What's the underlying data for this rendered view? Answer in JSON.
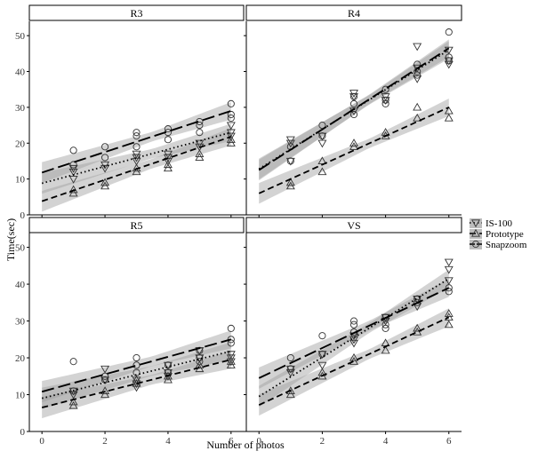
{
  "chart_data": {
    "type": "scatter",
    "xlabel": "Number of photos",
    "ylabel": "Time(sec)",
    "xlim": [
      -0.4,
      6.4
    ],
    "ylim": [
      0,
      54
    ],
    "xticks": [
      0,
      2,
      4,
      6
    ],
    "yticks": [
      0,
      10,
      20,
      30,
      40,
      50
    ],
    "grid": false,
    "legend_position": "right",
    "legend": [
      {
        "name": "IS-100",
        "marker": "triangle-down",
        "line": "dotted"
      },
      {
        "name": "Prototype",
        "marker": "triangle-up",
        "line": "dashed"
      },
      {
        "name": "Snapzoom",
        "marker": "circle",
        "line": "longdash"
      }
    ],
    "panels": [
      {
        "title": "R3",
        "series": [
          {
            "name": "IS-100",
            "fit": [
              8.8,
              23.0
            ],
            "points": [
              [
                1,
                13
              ],
              [
                1,
                12
              ],
              [
                1,
                10
              ],
              [
                2,
                14
              ],
              [
                2,
                13
              ],
              [
                3,
                16
              ],
              [
                3,
                17
              ],
              [
                3,
                15
              ],
              [
                4,
                17
              ],
              [
                4,
                16
              ],
              [
                4,
                15
              ],
              [
                5,
                20
              ],
              [
                5,
                19
              ],
              [
                6,
                23
              ],
              [
                6,
                22
              ],
              [
                6,
                25
              ]
            ]
          },
          {
            "name": "Prototype",
            "fit": [
              3.8,
              21.8
            ],
            "points": [
              [
                1,
                7
              ],
              [
                1,
                6
              ],
              [
                2,
                9
              ],
              [
                2,
                8
              ],
              [
                3,
                13
              ],
              [
                3,
                12
              ],
              [
                4,
                14
              ],
              [
                4,
                13
              ],
              [
                5,
                16
              ],
              [
                5,
                17
              ],
              [
                6,
                20
              ],
              [
                6,
                21
              ]
            ]
          },
          {
            "name": "Snapzoom",
            "fit": [
              11.8,
              29.0
            ],
            "points": [
              [
                1,
                18
              ],
              [
                1,
                14
              ],
              [
                2,
                19
              ],
              [
                2,
                16
              ],
              [
                3,
                23
              ],
              [
                3,
                22
              ],
              [
                3,
                19
              ],
              [
                4,
                24
              ],
              [
                4,
                21
              ],
              [
                4,
                23
              ],
              [
                5,
                26
              ],
              [
                5,
                23
              ],
              [
                5,
                25
              ],
              [
                6,
                31
              ],
              [
                6,
                28
              ],
              [
                6,
                27
              ]
            ]
          }
        ]
      },
      {
        "title": "R4",
        "series": [
          {
            "name": "IS-100",
            "fit": [
              12.8,
              46.0
            ],
            "points": [
              [
                1,
                21
              ],
              [
                1,
                20
              ],
              [
                1,
                15
              ],
              [
                2,
                22
              ],
              [
                2,
                20
              ],
              [
                3,
                34
              ],
              [
                3,
                33
              ],
              [
                3,
                29
              ],
              [
                4,
                33
              ],
              [
                4,
                32
              ],
              [
                5,
                47
              ],
              [
                5,
                41
              ],
              [
                5,
                38
              ],
              [
                6,
                46
              ],
              [
                6,
                43
              ],
              [
                6,
                42
              ]
            ]
          },
          {
            "name": "Prototype",
            "fit": [
              6.0,
              30.0
            ],
            "points": [
              [
                1,
                9
              ],
              [
                1,
                8
              ],
              [
                2,
                15
              ],
              [
                2,
                12
              ],
              [
                3,
                20
              ],
              [
                3,
                19
              ],
              [
                4,
                23
              ],
              [
                4,
                22
              ],
              [
                5,
                30
              ],
              [
                5,
                27
              ],
              [
                6,
                29
              ],
              [
                6,
                27
              ]
            ]
          },
          {
            "name": "Snapzoom",
            "fit": [
              12.5,
              46.5
            ],
            "points": [
              [
                1,
                19
              ],
              [
                1,
                15
              ],
              [
                2,
                25
              ],
              [
                2,
                22
              ],
              [
                3,
                33
              ],
              [
                3,
                31
              ],
              [
                3,
                28
              ],
              [
                4,
                35
              ],
              [
                4,
                32
              ],
              [
                4,
                31
              ],
              [
                5,
                42
              ],
              [
                5,
                40
              ],
              [
                5,
                39
              ],
              [
                6,
                51
              ],
              [
                6,
                44
              ],
              [
                6,
                43
              ]
            ]
          }
        ]
      },
      {
        "title": "R5",
        "series": [
          {
            "name": "IS-100",
            "fit": [
              9.0,
              21.8
            ],
            "points": [
              [
                1,
                11
              ],
              [
                1,
                10
              ],
              [
                2,
                17
              ],
              [
                2,
                14
              ],
              [
                3,
                14
              ],
              [
                3,
                13
              ],
              [
                3,
                12
              ],
              [
                4,
                18
              ],
              [
                4,
                16
              ],
              [
                4,
                15
              ],
              [
                5,
                22
              ],
              [
                5,
                20
              ],
              [
                6,
                21
              ],
              [
                6,
                19
              ],
              [
                6,
                20
              ]
            ]
          },
          {
            "name": "Prototype",
            "fit": [
              6.5,
              19.5
            ],
            "points": [
              [
                1,
                8
              ],
              [
                1,
                7
              ],
              [
                2,
                10
              ],
              [
                2,
                11
              ],
              [
                3,
                14
              ],
              [
                3,
                13
              ],
              [
                4,
                14
              ],
              [
                4,
                15
              ],
              [
                5,
                17
              ],
              [
                5,
                18
              ],
              [
                6,
                18
              ],
              [
                6,
                19
              ]
            ]
          },
          {
            "name": "Snapzoom",
            "fit": [
              10.8,
              25.0
            ],
            "points": [
              [
                1,
                19
              ],
              [
                1,
                11
              ],
              [
                2,
                15
              ],
              [
                2,
                14
              ],
              [
                3,
                20
              ],
              [
                3,
                18
              ],
              [
                3,
                16
              ],
              [
                4,
                18
              ],
              [
                4,
                16
              ],
              [
                5,
                22
              ],
              [
                5,
                20
              ],
              [
                5,
                19
              ],
              [
                6,
                28
              ],
              [
                6,
                24
              ],
              [
                6,
                25
              ]
            ]
          }
        ]
      },
      {
        "title": "VS",
        "series": [
          {
            "name": "IS-100",
            "fit": [
              9.5,
              41.5
            ],
            "points": [
              [
                1,
                17
              ],
              [
                1,
                16
              ],
              [
                2,
                18
              ],
              [
                2,
                21
              ],
              [
                3,
                26
              ],
              [
                3,
                25
              ],
              [
                3,
                24
              ],
              [
                4,
                31
              ],
              [
                4,
                30
              ],
              [
                5,
                36
              ],
              [
                5,
                34
              ],
              [
                6,
                46
              ],
              [
                6,
                44
              ],
              [
                6,
                41
              ]
            ]
          },
          {
            "name": "Prototype",
            "fit": [
              7.2,
              31.0
            ],
            "points": [
              [
                1,
                11
              ],
              [
                1,
                10
              ],
              [
                2,
                15
              ],
              [
                2,
                16
              ],
              [
                3,
                20
              ],
              [
                3,
                19
              ],
              [
                4,
                24
              ],
              [
                4,
                22
              ],
              [
                5,
                27
              ],
              [
                5,
                28
              ],
              [
                6,
                32
              ],
              [
                6,
                31
              ],
              [
                6,
                29
              ]
            ]
          },
          {
            "name": "Snapzoom",
            "fit": [
              14.5,
              39.0
            ],
            "points": [
              [
                1,
                20
              ],
              [
                1,
                17
              ],
              [
                2,
                26
              ],
              [
                2,
                21
              ],
              [
                3,
                30
              ],
              [
                3,
                29
              ],
              [
                3,
                27
              ],
              [
                4,
                31
              ],
              [
                4,
                29
              ],
              [
                4,
                28
              ],
              [
                5,
                36
              ],
              [
                5,
                35
              ],
              [
                6,
                39
              ],
              [
                6,
                38
              ]
            ]
          }
        ]
      }
    ]
  }
}
